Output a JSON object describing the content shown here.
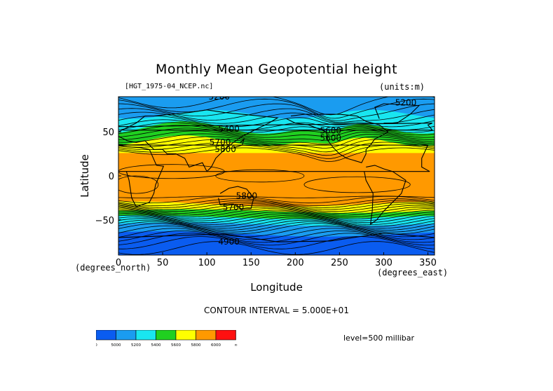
{
  "chart_data": {
    "type": "contour",
    "title": "Monthly Mean Geopotential height",
    "subtitle": "[HGT_1975-04_NCEP.nc]",
    "units": "(units:m)",
    "xlabel": "Longitude",
    "ylabel": "Latitude",
    "x_units": "(degrees_east)",
    "y_units": "(degrees_north)",
    "xlim": [
      0,
      357.5
    ],
    "ylim": [
      -90,
      90
    ],
    "x_ticks": [
      0,
      50,
      100,
      150,
      200,
      250,
      300,
      350
    ],
    "y_ticks": [
      50,
      0,
      -50
    ],
    "contour_interval": "CONTOUR INTERVAL = 5.000E+01",
    "level": "level=500 millibar",
    "contour_labels": [
      {
        "x": 114,
        "y": 87,
        "text": "5200"
      },
      {
        "x": 325,
        "y": 80,
        "text": "5200"
      },
      {
        "x": 125,
        "y": 50,
        "text": "5400"
      },
      {
        "x": 240,
        "y": 48,
        "text": "5600"
      },
      {
        "x": 240,
        "y": 40,
        "text": "5600"
      },
      {
        "x": 115,
        "y": 35,
        "text": "5700"
      },
      {
        "x": 121,
        "y": 27,
        "text": "5800"
      },
      {
        "x": 145,
        "y": -26,
        "text": "5800"
      },
      {
        "x": 130,
        "y": -39,
        "text": "5700"
      },
      {
        "x": 125,
        "y": -78,
        "text": "4900"
      }
    ],
    "colorbar": {
      "colors": [
        "#0a5cf0",
        "#1a9cf0",
        "#19e6f0",
        "#20d020",
        "#ffff00",
        "#ff9900",
        "#ff1010"
      ],
      "labels": [
        "0",
        "5000",
        "5200",
        "5400",
        "5600",
        "5800",
        "6000",
        "∞"
      ]
    }
  }
}
